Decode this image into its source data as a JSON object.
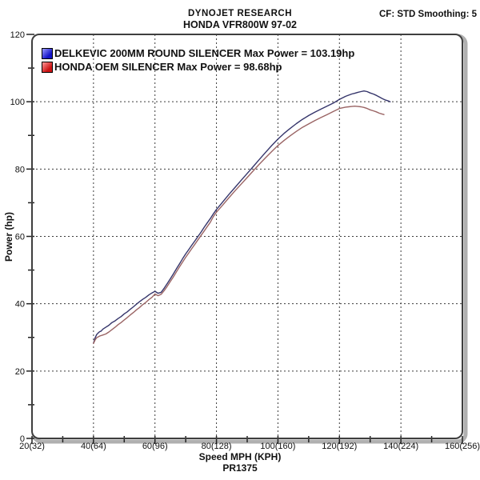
{
  "header": {
    "title_line1": "DYNOJET RESEARCH",
    "title_line2": "HONDA VFR800W 97-02",
    "cf_text": "CF: STD  Smoothing: 5"
  },
  "chart_data": {
    "type": "line",
    "xlabel": "Speed MPH (KPH)",
    "ylabel": "Power (hp)",
    "footnote": "PR1375",
    "xlim": [
      20,
      160
    ],
    "ylim": [
      0,
      120
    ],
    "grid": "dashed",
    "grid_color": "#3c3c3c",
    "frame_color": "#3f3f3f",
    "frame_shadow_color": "#b0b0b0",
    "minor_tick_step": 10,
    "legend_position": "top-left",
    "x_ticks": [
      {
        "value": 20,
        "label": "20(32)"
      },
      {
        "value": 40,
        "label": "40(64)"
      },
      {
        "value": 60,
        "label": "60(96)"
      },
      {
        "value": 80,
        "label": "80(128)"
      },
      {
        "value": 100,
        "label": "100(160)"
      },
      {
        "value": 120,
        "label": "120(192)"
      },
      {
        "value": 140,
        "label": "140(224)"
      },
      {
        "value": 160,
        "label": "160(256)"
      }
    ],
    "y_ticks": [
      {
        "value": 0,
        "label": "0"
      },
      {
        "value": 20,
        "label": "20"
      },
      {
        "value": 40,
        "label": "40"
      },
      {
        "value": 60,
        "label": "60"
      },
      {
        "value": 80,
        "label": "80"
      },
      {
        "value": 100,
        "label": "100"
      },
      {
        "value": 120,
        "label": "120"
      }
    ],
    "series": [
      {
        "name": "DELKEVIC 200MM ROUND SILENCER",
        "max_power_hp": 103.19,
        "legend_label": "DELKEVIC 200MM ROUND SILENCER Max Power = 103.19hp",
        "color": "#35356b",
        "swatch_color_light": "#9a9aff",
        "swatch_color_dark": "#1414c8",
        "points": [
          [
            40,
            28.3
          ],
          [
            40.5,
            29.8
          ],
          [
            41,
            30.8
          ],
          [
            41.5,
            31.3
          ],
          [
            42,
            31.7
          ],
          [
            42.5,
            31.9
          ],
          [
            43,
            32.4
          ],
          [
            44,
            33.0
          ],
          [
            45,
            33.6
          ],
          [
            46,
            34.4
          ],
          [
            47,
            34.9
          ],
          [
            48,
            35.6
          ],
          [
            49,
            36.2
          ],
          [
            50,
            37.0
          ],
          [
            51,
            37.6
          ],
          [
            52,
            38.4
          ],
          [
            53,
            39.1
          ],
          [
            54,
            39.9
          ],
          [
            55,
            40.6
          ],
          [
            56,
            41.3
          ],
          [
            57,
            41.9
          ],
          [
            58,
            42.6
          ],
          [
            59,
            43.2
          ],
          [
            60,
            43.7
          ],
          [
            61,
            43.1
          ],
          [
            62,
            43.4
          ],
          [
            63,
            44.6
          ],
          [
            64,
            46.0
          ],
          [
            65,
            47.4
          ],
          [
            66,
            48.9
          ],
          [
            67,
            50.4
          ],
          [
            68,
            51.9
          ],
          [
            69,
            53.4
          ],
          [
            70,
            54.8
          ],
          [
            71,
            56.1
          ],
          [
            72,
            57.4
          ],
          [
            73,
            58.7
          ],
          [
            74,
            60.0
          ],
          [
            75,
            61.3
          ],
          [
            76,
            62.7
          ],
          [
            77,
            64.0
          ],
          [
            78,
            65.3
          ],
          [
            79,
            66.7
          ],
          [
            80,
            68.0
          ],
          [
            82,
            70.2
          ],
          [
            84,
            72.4
          ],
          [
            86,
            74.5
          ],
          [
            88,
            76.6
          ],
          [
            90,
            78.7
          ],
          [
            92,
            80.8
          ],
          [
            94,
            82.9
          ],
          [
            96,
            85.0
          ],
          [
            98,
            87.0
          ],
          [
            100,
            88.9
          ],
          [
            102,
            90.6
          ],
          [
            104,
            92.1
          ],
          [
            106,
            93.5
          ],
          [
            108,
            94.8
          ],
          [
            110,
            95.9
          ],
          [
            112,
            96.9
          ],
          [
            114,
            97.8
          ],
          [
            116,
            98.7
          ],
          [
            118,
            99.6
          ],
          [
            120,
            100.7
          ],
          [
            122,
            101.6
          ],
          [
            124,
            102.3
          ],
          [
            125,
            102.5
          ],
          [
            126,
            102.8
          ],
          [
            127,
            103.0
          ],
          [
            128,
            103.19
          ],
          [
            129,
            103.0
          ],
          [
            130,
            102.6
          ],
          [
            131,
            102.3
          ],
          [
            132,
            101.9
          ],
          [
            133,
            101.4
          ],
          [
            134,
            100.9
          ],
          [
            135,
            100.5
          ],
          [
            136,
            100.2
          ],
          [
            136.5,
            100.0
          ]
        ]
      },
      {
        "name": "HONDA OEM SILENCER",
        "max_power_hp": 98.68,
        "legend_label": "HONDA OEM SILENCER Max Power = 98.68hp",
        "color": "#9a6464",
        "swatch_color_light": "#ff9a9a",
        "swatch_color_dark": "#cc1414",
        "points": [
          [
            40,
            28.2
          ],
          [
            40.5,
            29.2
          ],
          [
            41,
            29.9
          ],
          [
            42,
            30.4
          ],
          [
            43,
            30.7
          ],
          [
            44,
            31.0
          ],
          [
            45,
            31.6
          ],
          [
            46,
            32.3
          ],
          [
            47,
            33.0
          ],
          [
            48,
            33.8
          ],
          [
            49,
            34.4
          ],
          [
            50,
            35.2
          ],
          [
            51,
            35.9
          ],
          [
            52,
            36.7
          ],
          [
            53,
            37.4
          ],
          [
            54,
            38.2
          ],
          [
            55,
            38.9
          ],
          [
            56,
            39.7
          ],
          [
            57,
            40.4
          ],
          [
            58,
            41.2
          ],
          [
            59,
            41.9
          ],
          [
            60,
            42.9
          ],
          [
            61,
            42.4
          ],
          [
            62,
            42.8
          ],
          [
            63,
            43.9
          ],
          [
            64,
            45.2
          ],
          [
            65,
            46.6
          ],
          [
            66,
            48.0
          ],
          [
            67,
            49.5
          ],
          [
            68,
            51.0
          ],
          [
            69,
            52.4
          ],
          [
            70,
            53.8
          ],
          [
            71,
            55.1
          ],
          [
            72,
            56.4
          ],
          [
            73,
            57.7
          ],
          [
            74,
            59.0
          ],
          [
            75,
            60.3
          ],
          [
            76,
            61.6
          ],
          [
            77,
            62.9
          ],
          [
            78,
            64.2
          ],
          [
            79,
            65.9
          ],
          [
            80,
            67.2
          ],
          [
            82,
            69.3
          ],
          [
            84,
            71.4
          ],
          [
            86,
            73.5
          ],
          [
            88,
            75.5
          ],
          [
            90,
            77.5
          ],
          [
            92,
            79.5
          ],
          [
            94,
            81.5
          ],
          [
            96,
            83.4
          ],
          [
            98,
            85.2
          ],
          [
            100,
            87.0
          ],
          [
            102,
            88.5
          ],
          [
            104,
            89.9
          ],
          [
            106,
            91.2
          ],
          [
            108,
            92.4
          ],
          [
            110,
            93.4
          ],
          [
            112,
            94.4
          ],
          [
            114,
            95.3
          ],
          [
            116,
            96.2
          ],
          [
            118,
            97.1
          ],
          [
            120,
            98.0
          ],
          [
            122,
            98.4
          ],
          [
            123,
            98.5
          ],
          [
            124,
            98.6
          ],
          [
            125,
            98.68
          ],
          [
            126,
            98.6
          ],
          [
            127,
            98.5
          ],
          [
            128,
            98.3
          ],
          [
            129,
            98.0
          ],
          [
            130,
            97.6
          ],
          [
            131,
            97.3
          ],
          [
            132,
            97.0
          ],
          [
            133,
            96.6
          ],
          [
            134,
            96.3
          ],
          [
            134.5,
            96.2
          ]
        ]
      }
    ]
  }
}
